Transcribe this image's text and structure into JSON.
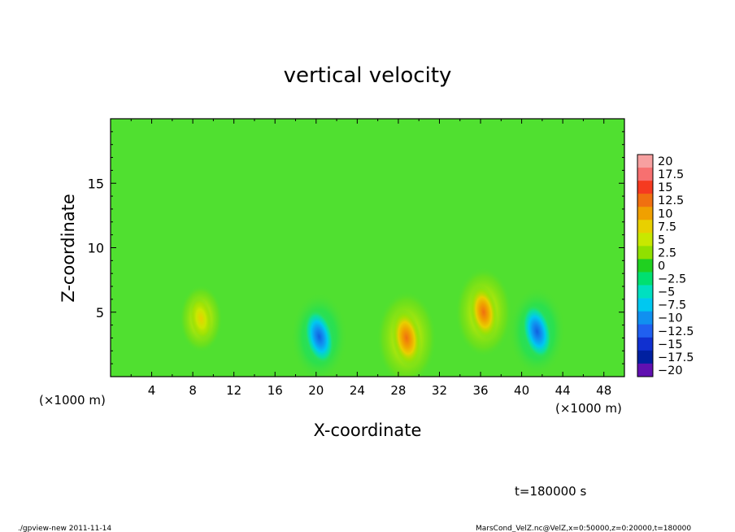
{
  "chart_data": {
    "type": "heatmap",
    "title": "vertical velocity",
    "xlabel": "X-coordinate",
    "ylabel": "Z-coordinate",
    "x_unit_label": "(×1000 m)",
    "x_unit_label_right": "(×1000 m)",
    "xlim": [
      0,
      50
    ],
    "ylim": [
      0,
      20
    ],
    "x_ticks": [
      "4",
      "8",
      "12",
      "16",
      "20",
      "24",
      "28",
      "32",
      "36",
      "40",
      "44",
      "48"
    ],
    "x_tick_values": [
      4,
      8,
      12,
      16,
      20,
      24,
      28,
      32,
      36,
      40,
      44,
      48
    ],
    "y_ticks": [
      "5",
      "10",
      "15"
    ],
    "y_tick_values": [
      5,
      10,
      15
    ],
    "colorbar": {
      "labels": [
        "20",
        "17.5",
        "15",
        "12.5",
        "10",
        "7.5",
        "5",
        "2.5",
        "0",
        "−2.5",
        "−5",
        "−7.5",
        "−10",
        "−12.5",
        "−15",
        "−17.5",
        "−20"
      ],
      "colors": [
        "#f7a0a0",
        "#f77070",
        "#f53a20",
        "#f07010",
        "#f0a000",
        "#e8d000",
        "#c8e800",
        "#90e000",
        "#20d020",
        "#00e070",
        "#00e0c0",
        "#00c8f0",
        "#1090f0",
        "#2060f0",
        "#1030d0",
        "#0020a0",
        "#6010b0"
      ]
    },
    "background_color": "#50e030",
    "features": [
      {
        "type": "updraft",
        "x": 8.8,
        "z": 4.5,
        "peak": 6.5
      },
      {
        "type": "downdraft",
        "x": 20.3,
        "z": 3.1,
        "peak": -11
      },
      {
        "type": "updraft",
        "x": 28.8,
        "z": 3.0,
        "peak": 12
      },
      {
        "type": "updraft",
        "x": 36.3,
        "z": 5.0,
        "peak": 11
      },
      {
        "type": "downdraft",
        "x": 41.5,
        "z": 3.5,
        "peak": -11
      }
    ]
  },
  "footer": {
    "time_label": "t=180000 s",
    "left_note": "./gpview-new  2011-11-14",
    "right_note": "MarsCond_VelZ.nc@VelZ,x=0:50000,z=0:20000,t=180000"
  }
}
